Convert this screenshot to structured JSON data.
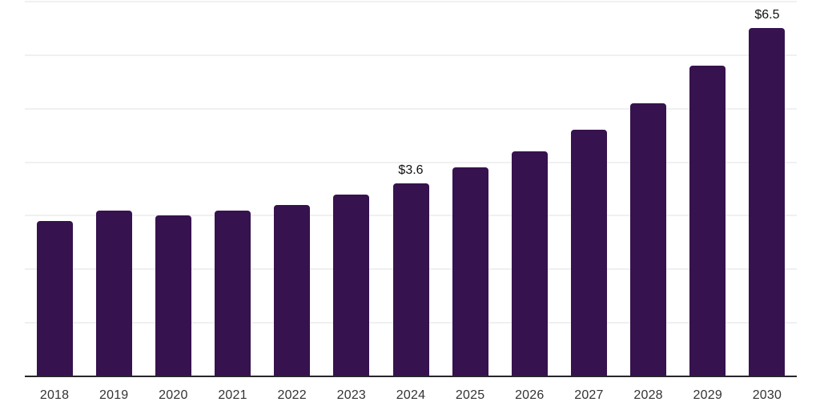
{
  "chart_data": {
    "type": "bar",
    "title": "",
    "xlabel": "",
    "ylabel": "",
    "categories": [
      "2018",
      "2019",
      "2020",
      "2021",
      "2022",
      "2023",
      "2024",
      "2025",
      "2026",
      "2027",
      "2028",
      "2029",
      "2030"
    ],
    "values": [
      2.9,
      3.1,
      3.0,
      3.1,
      3.2,
      3.4,
      3.6,
      3.9,
      4.2,
      4.6,
      5.1,
      5.8,
      6.5
    ],
    "data_labels": [
      {
        "category": "2024",
        "text": "$3.6"
      },
      {
        "category": "2030",
        "text": "$6.5"
      }
    ],
    "ylim": [
      0,
      7
    ],
    "grid": "horizontal",
    "legend": "none",
    "colors": {
      "bar": "#36124E",
      "grid_line": "#f0f0f2",
      "axis_line": "#26262b",
      "tick_label": "#333333",
      "data_label": "#111111",
      "background": "#ffffff"
    }
  }
}
